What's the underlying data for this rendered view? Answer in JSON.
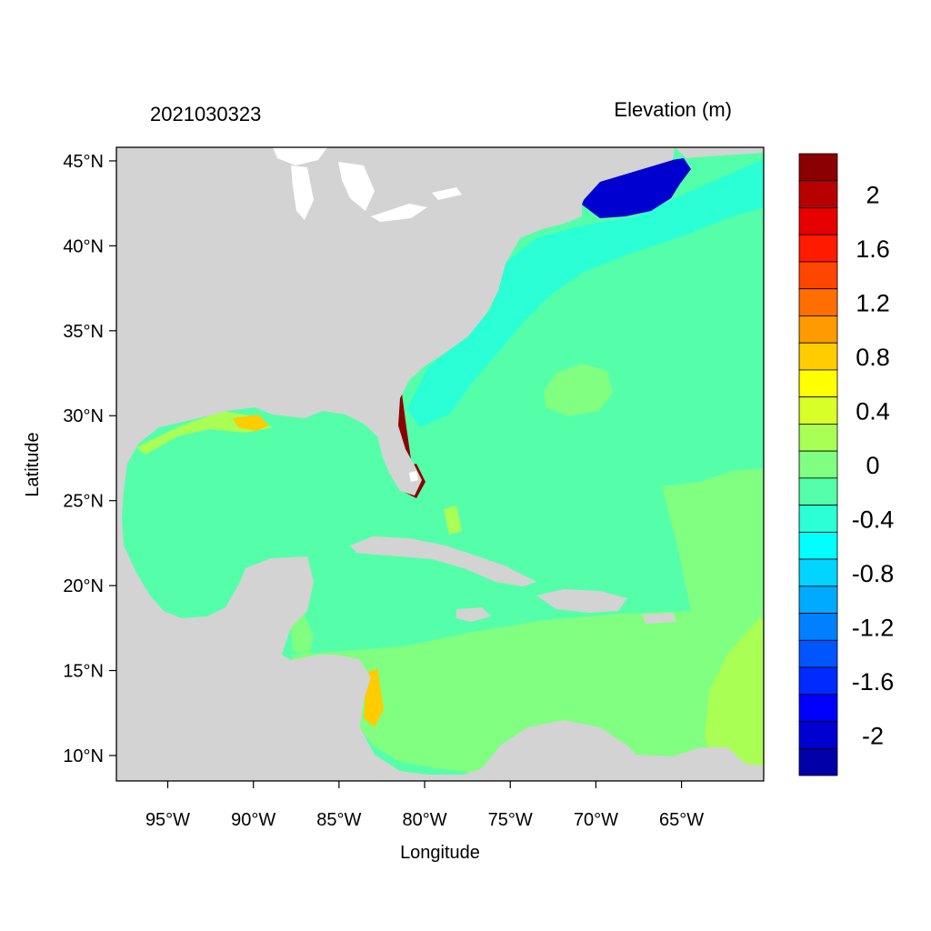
{
  "header": {
    "timestamp": "2021030323",
    "variable_title": "Elevation (m)"
  },
  "axes": {
    "xlabel": "Longitude",
    "ylabel": "Latitude",
    "x_ticks": [
      {
        "value": -95,
        "label": "95°W"
      },
      {
        "value": -90,
        "label": "90°W"
      },
      {
        "value": -85,
        "label": "85°W"
      },
      {
        "value": -80,
        "label": "80°W"
      },
      {
        "value": -75,
        "label": "75°W"
      },
      {
        "value": -70,
        "label": "70°W"
      },
      {
        "value": -65,
        "label": "65°W"
      }
    ],
    "y_ticks": [
      {
        "value": 45,
        "label": "45°N"
      },
      {
        "value": 40,
        "label": "40°N"
      },
      {
        "value": 35,
        "label": "35°N"
      },
      {
        "value": 30,
        "label": "30°N"
      },
      {
        "value": 25,
        "label": "25°N"
      },
      {
        "value": 20,
        "label": "20°N"
      },
      {
        "value": 15,
        "label": "15°N"
      },
      {
        "value": 10,
        "label": "10°N"
      }
    ],
    "lon_range": [
      -98,
      -60.2
    ],
    "lat_range": [
      8.5,
      45.8
    ]
  },
  "colorbar": {
    "levels": [
      {
        "color": "#8b0000"
      },
      {
        "color": "#b80000",
        "label": "2"
      },
      {
        "color": "#e60000"
      },
      {
        "color": "#ff1a00",
        "label": "1.6"
      },
      {
        "color": "#ff4600"
      },
      {
        "color": "#ff6e00",
        "label": "1.2"
      },
      {
        "color": "#ff9a00"
      },
      {
        "color": "#ffcc00",
        "label": "0.8"
      },
      {
        "color": "#ffff00"
      },
      {
        "color": "#d8ff28",
        "label": "0.4"
      },
      {
        "color": "#aaff55"
      },
      {
        "color": "#80ff80",
        "label": "0"
      },
      {
        "color": "#55ffaa"
      },
      {
        "color": "#2affd5",
        "label": "-0.4"
      },
      {
        "color": "#00ffff"
      },
      {
        "color": "#00d4ff",
        "label": "-0.8"
      },
      {
        "color": "#00aaff"
      },
      {
        "color": "#0080ff",
        "label": "-1.2"
      },
      {
        "color": "#0055ff"
      },
      {
        "color": "#002aff",
        "label": "-1.6"
      },
      {
        "color": "#0000ff"
      },
      {
        "color": "#0000d0",
        "label": "-2"
      },
      {
        "color": "#0000a8"
      }
    ]
  },
  "map": {
    "land_color": "#d3d3d3",
    "base_ocean_color": "#55ffaa",
    "regions": [
      {
        "name": "caribbean-sea",
        "color": "#80ff80"
      },
      {
        "name": "central-atlantic-high",
        "color": "#80ff80"
      },
      {
        "name": "east-atlantic",
        "color": "#80ff80"
      },
      {
        "name": "shelf-low",
        "color": "#2affd5"
      },
      {
        "name": "gulf-of-maine-low",
        "color": "#0000d0"
      },
      {
        "name": "south-florida-high",
        "color": "#8b0000"
      },
      {
        "name": "east-caribbean-rise",
        "color": "#aaff55"
      }
    ]
  }
}
